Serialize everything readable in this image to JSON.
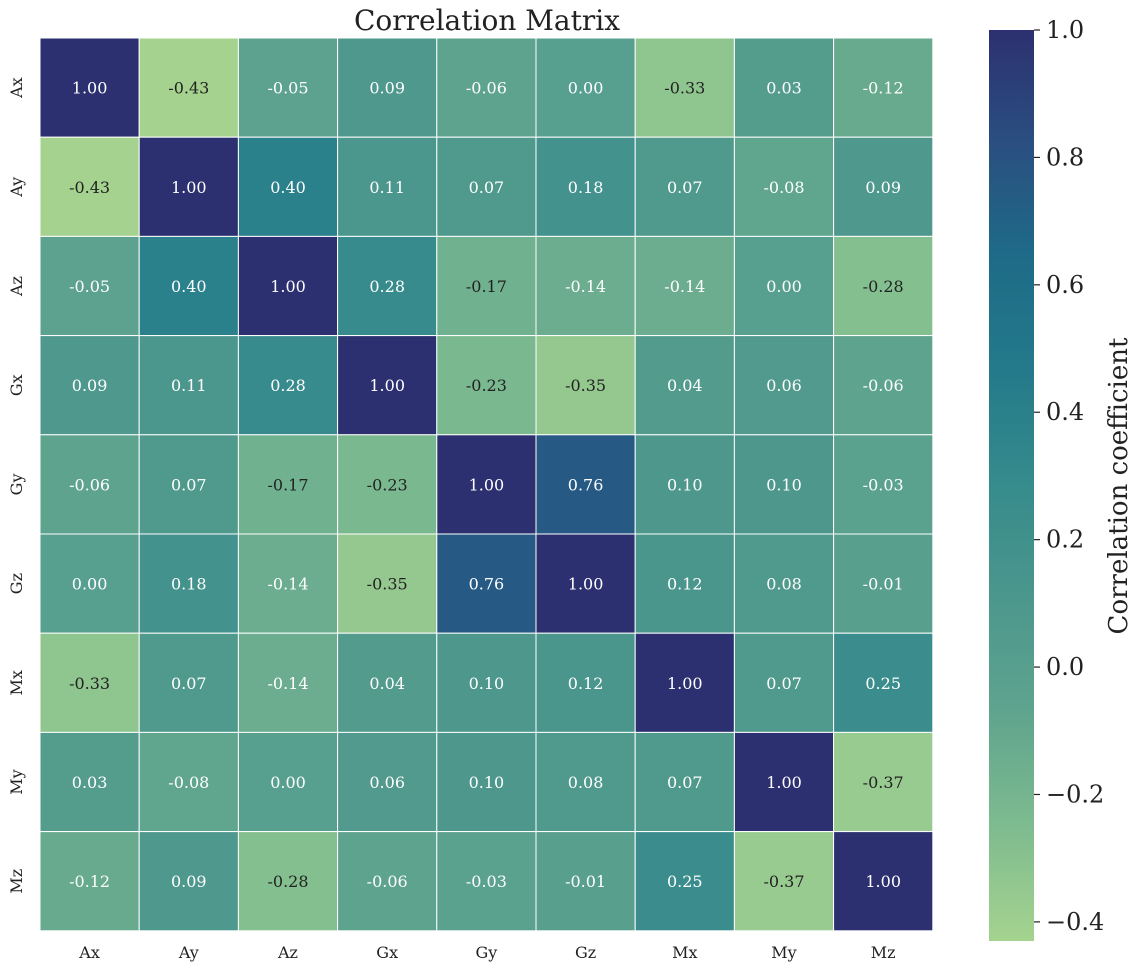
{
  "chart_data": {
    "type": "heatmap",
    "title": "Correlation Matrix",
    "x_categories": [
      "Ax",
      "Ay",
      "Az",
      "Gx",
      "Gy",
      "Gz",
      "Mx",
      "My",
      "Mz"
    ],
    "y_categories": [
      "Ax",
      "Ay",
      "Az",
      "Gx",
      "Gy",
      "Gz",
      "Mx",
      "My",
      "Mz"
    ],
    "values": [
      [
        1.0,
        -0.43,
        -0.05,
        0.09,
        -0.06,
        -0.0,
        -0.33,
        0.03,
        -0.12
      ],
      [
        -0.43,
        1.0,
        0.4,
        0.11,
        0.07,
        0.18,
        0.07,
        -0.08,
        0.09
      ],
      [
        -0.05,
        0.4,
        1.0,
        0.28,
        -0.17,
        -0.14,
        -0.14,
        -0.0,
        -0.28
      ],
      [
        0.09,
        0.11,
        0.28,
        1.0,
        -0.23,
        -0.35,
        0.04,
        0.06,
        -0.06
      ],
      [
        -0.06,
        0.07,
        -0.17,
        -0.23,
        1.0,
        0.76,
        0.1,
        0.1,
        -0.03
      ],
      [
        -0.0,
        0.18,
        -0.14,
        -0.35,
        0.76,
        1.0,
        0.12,
        0.08,
        -0.01
      ],
      [
        -0.33,
        0.07,
        -0.14,
        0.04,
        0.1,
        0.12,
        1.0,
        0.07,
        0.25
      ],
      [
        0.03,
        -0.08,
        -0.0,
        0.06,
        0.1,
        0.08,
        0.07,
        1.0,
        -0.37
      ],
      [
        -0.12,
        0.09,
        -0.28,
        -0.06,
        -0.03,
        -0.01,
        0.25,
        -0.37,
        1.0
      ]
    ],
    "value_format_decimals": 2,
    "colorbar": {
      "label": "Correlation coefficient",
      "range": [
        -0.43,
        1.0
      ],
      "ticks": [
        1.0,
        0.8,
        0.6,
        0.4,
        0.2,
        0.0,
        -0.2,
        -0.4
      ],
      "tick_labels": [
        "1.0",
        "0.8",
        "0.6",
        "0.4",
        "0.2",
        "0.0",
        "−0.2",
        "−0.4"
      ],
      "position": "right"
    },
    "colormap": {
      "name": "crest",
      "stops": [
        "#a5d38f",
        "#7ebb8f",
        "#5fa48e",
        "#4c978d",
        "#368b8c",
        "#247a8a",
        "#1e6b88",
        "#2a4f80",
        "#2c3070"
      ]
    },
    "gridlines": "white cell borders"
  }
}
